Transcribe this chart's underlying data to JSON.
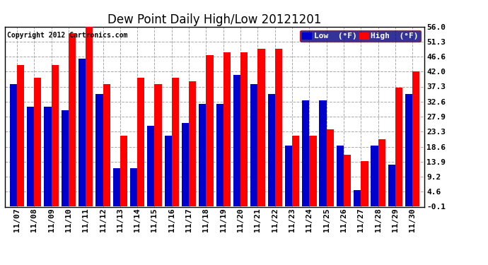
{
  "title": "Dew Point Daily High/Low 20121201",
  "copyright": "Copyright 2012 Cartronics.com",
  "legend_low": "Low  (°F)",
  "legend_high": "High  (°F)",
  "dates": [
    "11/07",
    "11/08",
    "11/09",
    "11/10",
    "11/11",
    "11/12",
    "11/13",
    "11/14",
    "11/15",
    "11/16",
    "11/17",
    "11/18",
    "11/19",
    "11/20",
    "11/21",
    "11/22",
    "11/23",
    "11/24",
    "11/25",
    "11/26",
    "11/27",
    "11/28",
    "11/29",
    "11/30"
  ],
  "high_values": [
    44,
    40,
    44,
    54,
    56,
    38,
    22,
    40,
    38,
    40,
    39,
    47,
    48,
    48,
    49,
    49,
    22,
    22,
    24,
    16,
    14,
    21,
    37,
    42
  ],
  "low_values": [
    38,
    31,
    31,
    30,
    46,
    35,
    12,
    12,
    25,
    22,
    26,
    32,
    32,
    41,
    38,
    35,
    19,
    33,
    33,
    19,
    5,
    19,
    13,
    35
  ],
  "ylim": [
    -0.1,
    56.0
  ],
  "yticks": [
    -0.1,
    4.6,
    9.2,
    13.9,
    18.6,
    23.3,
    27.9,
    32.6,
    37.3,
    42.0,
    46.6,
    51.3,
    56.0
  ],
  "ytick_labels": [
    "-0.1",
    "4.6",
    "9.2",
    "13.9",
    "18.6",
    "23.3",
    "27.9",
    "32.6",
    "37.3",
    "42.0",
    "46.6",
    "51.3",
    "56.0"
  ],
  "bar_width": 0.42,
  "high_color": "#FF0000",
  "low_color": "#0000CC",
  "bg_color": "#FFFFFF",
  "grid_color": "#AAAAAA",
  "title_fontsize": 12,
  "tick_fontsize": 8,
  "legend_fontsize": 8
}
